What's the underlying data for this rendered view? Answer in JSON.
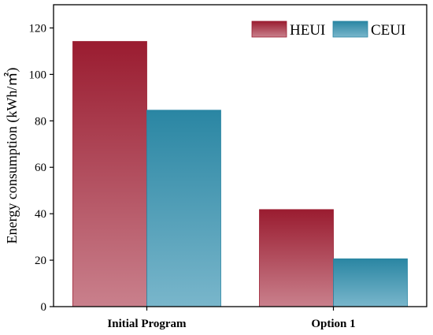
{
  "chart_data": {
    "type": "bar",
    "title": "",
    "xlabel": "",
    "ylabel": "Energy consumption (kWh/㎡)",
    "categories": [
      "Initial Program",
      "Option 1"
    ],
    "series": [
      {
        "name": "HEUI",
        "values": [
          114.2,
          41.8
        ]
      },
      {
        "name": "CEUI",
        "values": [
          84.6,
          20.6
        ]
      }
    ],
    "ylim": [
      0,
      130
    ],
    "yticks": [
      0,
      20,
      40,
      60,
      80,
      100,
      120
    ],
    "legend_position": "top-right",
    "grid": false,
    "colors": {
      "HEUI_top": "#9a1c30",
      "HEUI_bottom": "#c9808c",
      "CEUI_top": "#2a86a3",
      "CEUI_bottom": "#79b6cb"
    }
  }
}
